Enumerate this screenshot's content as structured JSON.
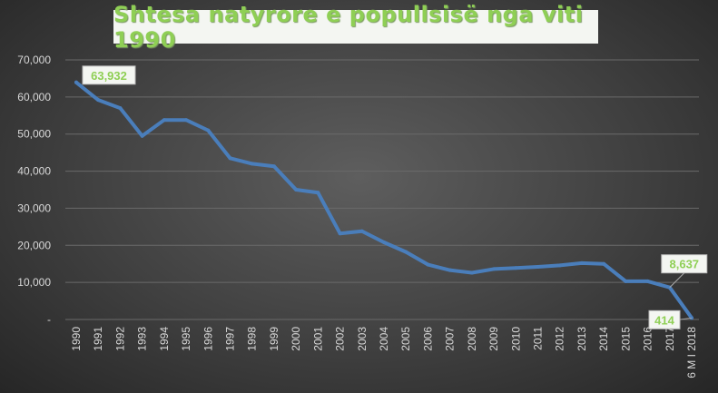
{
  "chart_data": {
    "type": "line",
    "title": "Shtesa natyrore  e popullsisë  nga viti 1990",
    "xlabel": "",
    "ylabel": "",
    "categories": [
      "1990",
      "1991",
      "1992",
      "1993",
      "1994",
      "1995",
      "1996",
      "1997",
      "1998",
      "1999",
      "2000",
      "2001",
      "2002",
      "2003",
      "2004",
      "2005",
      "2006",
      "2007",
      "2008",
      "2009",
      "2010",
      "2011",
      "2012",
      "2013",
      "2014",
      "2015",
      "2016",
      "2017",
      "6 M I 2018"
    ],
    "values": [
      63932,
      59200,
      57000,
      49500,
      53800,
      53800,
      51000,
      43500,
      42000,
      41300,
      35000,
      34200,
      23200,
      23800,
      20800,
      18200,
      14800,
      13300,
      12600,
      13600,
      13900,
      14200,
      14600,
      15200,
      15000,
      10300,
      10300,
      8637,
      414
    ],
    "ylim": [
      0,
      70000
    ],
    "yticks": [
      0,
      10000,
      20000,
      30000,
      40000,
      50000,
      60000,
      70000
    ],
    "ytick_labels": [
      "-",
      "10,000",
      "20,000",
      "30,000",
      "40,000",
      "50,000",
      "60,000",
      "70,000"
    ],
    "data_labels": [
      {
        "index": 0,
        "text": "63,932"
      },
      {
        "index": 27,
        "text": "8,637"
      },
      {
        "index": 28,
        "text": "414"
      }
    ],
    "grid": true,
    "legend": "none",
    "colors": {
      "line": "#4a7ebb",
      "title_text": "#8fcf55",
      "label_text": "#8fcf55",
      "grid": "#6a6a6a",
      "axis_text": "#d9d9d9"
    }
  }
}
